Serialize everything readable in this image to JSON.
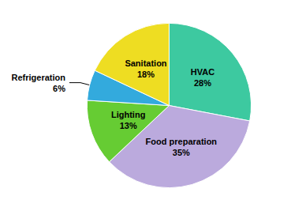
{
  "chart_data": {
    "type": "pie",
    "categories": [
      "HVAC",
      "Food preparation",
      "Lighting",
      "Refrigeration",
      "Sanitation"
    ],
    "values": [
      28,
      35,
      13,
      6,
      18
    ],
    "value_labels": [
      "28%",
      "35%",
      "13%",
      "6%",
      "18%"
    ],
    "colors": [
      "#3DC9A0",
      "#BBAADD",
      "#66CC33",
      "#33AADD",
      "#EEDD22"
    ],
    "data_labels": true
  }
}
